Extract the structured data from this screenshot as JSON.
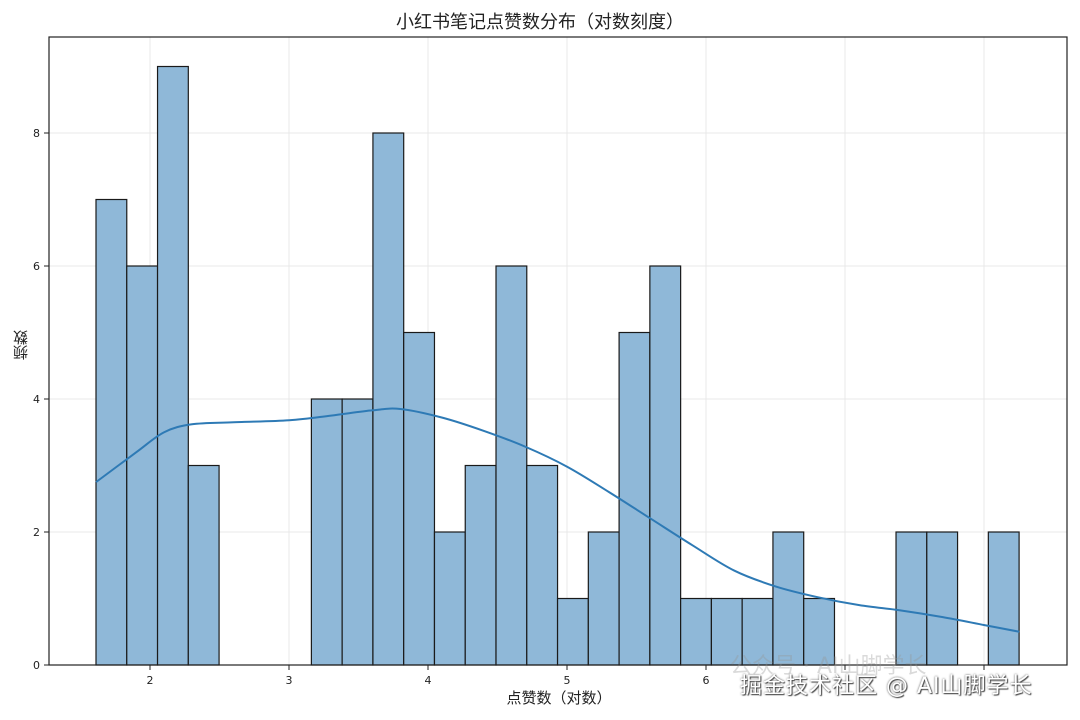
{
  "chart_data": {
    "type": "bar",
    "subtype": "histogram_with_kde",
    "title": "小红书笔记点赞数分布（对数刻度）",
    "xlabel": "点赞数（对数）",
    "ylabel": "频数",
    "xlim": [
      1.28,
      8.6
    ],
    "ylim": [
      0,
      9.45
    ],
    "xticks": [
      2,
      3,
      4,
      5,
      6,
      7,
      8
    ],
    "xtick_labels": [
      "2",
      "3",
      "4",
      "5",
      "6",
      "",
      ""
    ],
    "yticks": [
      0,
      2,
      4,
      6,
      8
    ],
    "ytick_labels": [
      "0",
      "2",
      "4",
      "6",
      "8"
    ],
    "grid": true,
    "bin_start": 1.61,
    "bin_width": 0.2213,
    "bin_edges": [
      1.61,
      1.83,
      2.05,
      2.27,
      2.5,
      2.72,
      2.94,
      3.16,
      3.38,
      3.6,
      3.82,
      4.04,
      4.27,
      4.49,
      4.71,
      4.93,
      5.15,
      5.37,
      5.59,
      5.82,
      6.04,
      6.26,
      6.48,
      6.7,
      6.92,
      7.14,
      7.36,
      7.58,
      7.81,
      8.03,
      8.25
    ],
    "values": [
      7,
      6,
      9,
      3,
      0,
      0,
      0,
      4,
      4,
      8,
      5,
      2,
      3,
      6,
      3,
      1,
      2,
      5,
      6,
      1,
      1,
      1,
      2,
      1,
      0,
      0,
      2,
      2,
      0,
      2
    ],
    "kde": {
      "x": [
        1.61,
        1.9,
        2.1,
        2.3,
        2.6,
        3.0,
        3.3,
        3.6,
        3.8,
        4.1,
        4.4,
        4.7,
        5.0,
        5.3,
        5.6,
        5.9,
        6.2,
        6.5,
        6.8,
        7.1,
        7.4,
        7.7,
        8.0,
        8.25
      ],
      "y": [
        2.75,
        3.2,
        3.5,
        3.62,
        3.65,
        3.68,
        3.75,
        3.83,
        3.85,
        3.72,
        3.52,
        3.28,
        2.98,
        2.6,
        2.2,
        1.8,
        1.42,
        1.18,
        1.02,
        0.9,
        0.82,
        0.72,
        0.6,
        0.5
      ]
    },
    "colors": {
      "bar_fill": "#8fb8d8",
      "bar_edge": "#1a1a1a",
      "kde_line": "#2e7ab5",
      "grid": "#e8e8e8"
    }
  },
  "watermark": {
    "text": "掘金技术社区 @ AI山脚学长",
    "ghost_text": "公众号 · AI山脚学长"
  }
}
